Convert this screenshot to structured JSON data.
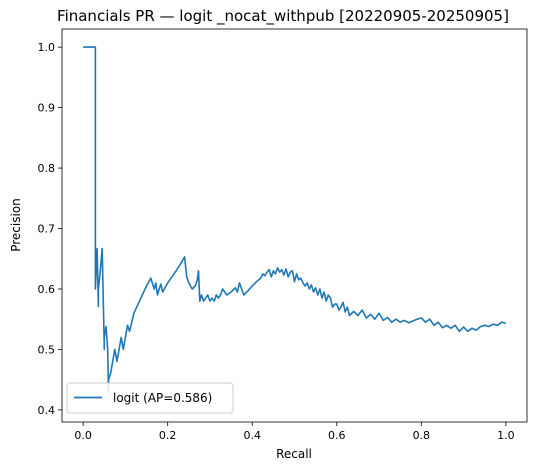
{
  "chart_data": {
    "type": "line",
    "title": "Financials PR — logit _nocat_withpub [20220905-20250905]",
    "xlabel": "Recall",
    "ylabel": "Precision",
    "xlim": [
      -0.05,
      1.05
    ],
    "ylim": [
      0.38,
      1.03
    ],
    "xticks": [
      0.0,
      0.2,
      0.4,
      0.6,
      0.8,
      1.0
    ],
    "xtick_labels": [
      "0.0",
      "0.2",
      "0.4",
      "0.6",
      "0.8",
      "1.0"
    ],
    "yticks": [
      0.4,
      0.5,
      0.6,
      0.7,
      0.8,
      0.9,
      1.0
    ],
    "ytick_labels": [
      "0.4",
      "0.5",
      "0.6",
      "0.7",
      "0.8",
      "0.9",
      "1.0"
    ],
    "grid": false,
    "legend_position": "lower-left",
    "colors": {
      "series": "#1f77b4"
    },
    "series": [
      {
        "name": "logit (AP=0.586)",
        "x": [
          0.0,
          0.029,
          0.029,
          0.033,
          0.036,
          0.036,
          0.04,
          0.045,
          0.05,
          0.05,
          0.054,
          0.058,
          0.06,
          0.06,
          0.065,
          0.07,
          0.075,
          0.08,
          0.085,
          0.09,
          0.095,
          0.1,
          0.105,
          0.11,
          0.115,
          0.12,
          0.13,
          0.14,
          0.15,
          0.16,
          0.168,
          0.172,
          0.176,
          0.18,
          0.184,
          0.188,
          0.192,
          0.196,
          0.2,
          0.21,
          0.22,
          0.23,
          0.24,
          0.245,
          0.25,
          0.258,
          0.265,
          0.27,
          0.273,
          0.276,
          0.28,
          0.285,
          0.29,
          0.295,
          0.3,
          0.305,
          0.31,
          0.315,
          0.32,
          0.325,
          0.33,
          0.34,
          0.35,
          0.36,
          0.365,
          0.37,
          0.38,
          0.39,
          0.4,
          0.41,
          0.42,
          0.425,
          0.43,
          0.435,
          0.44,
          0.445,
          0.45,
          0.455,
          0.46,
          0.465,
          0.47,
          0.475,
          0.48,
          0.485,
          0.49,
          0.495,
          0.5,
          0.505,
          0.51,
          0.515,
          0.52,
          0.525,
          0.53,
          0.535,
          0.54,
          0.545,
          0.55,
          0.555,
          0.56,
          0.565,
          0.57,
          0.575,
          0.58,
          0.585,
          0.59,
          0.595,
          0.6,
          0.605,
          0.61,
          0.615,
          0.62,
          0.625,
          0.63,
          0.64,
          0.65,
          0.66,
          0.67,
          0.68,
          0.69,
          0.7,
          0.71,
          0.72,
          0.73,
          0.74,
          0.75,
          0.76,
          0.77,
          0.78,
          0.79,
          0.8,
          0.81,
          0.82,
          0.83,
          0.84,
          0.85,
          0.86,
          0.87,
          0.88,
          0.89,
          0.9,
          0.91,
          0.92,
          0.93,
          0.94,
          0.95,
          0.96,
          0.97,
          0.98,
          0.99,
          1.0
        ],
        "y": [
          1.0,
          1.0,
          0.6,
          0.667,
          0.571,
          0.6,
          0.625,
          0.667,
          0.5,
          0.52,
          0.538,
          0.5,
          0.429,
          0.45,
          0.46,
          0.48,
          0.5,
          0.48,
          0.5,
          0.52,
          0.5,
          0.52,
          0.54,
          0.53,
          0.545,
          0.56,
          0.575,
          0.59,
          0.605,
          0.618,
          0.6,
          0.61,
          0.59,
          0.6,
          0.608,
          0.595,
          0.6,
          0.605,
          0.61,
          0.62,
          0.63,
          0.641,
          0.653,
          0.62,
          0.61,
          0.6,
          0.605,
          0.615,
          0.63,
          0.58,
          0.59,
          0.58,
          0.585,
          0.59,
          0.58,
          0.585,
          0.58,
          0.59,
          0.585,
          0.59,
          0.6,
          0.59,
          0.595,
          0.602,
          0.595,
          0.61,
          0.59,
          0.597,
          0.605,
          0.612,
          0.618,
          0.625,
          0.622,
          0.628,
          0.632,
          0.62,
          0.63,
          0.625,
          0.635,
          0.628,
          0.632,
          0.623,
          0.633,
          0.62,
          0.628,
          0.63,
          0.612,
          0.625,
          0.615,
          0.618,
          0.61,
          0.605,
          0.61,
          0.6,
          0.607,
          0.595,
          0.602,
          0.59,
          0.6,
          0.585,
          0.595,
          0.58,
          0.59,
          0.585,
          0.57,
          0.575,
          0.575,
          0.565,
          0.57,
          0.578,
          0.562,
          0.57,
          0.556,
          0.563,
          0.556,
          0.565,
          0.552,
          0.558,
          0.55,
          0.56,
          0.548,
          0.553,
          0.545,
          0.55,
          0.545,
          0.548,
          0.544,
          0.547,
          0.55,
          0.552,
          0.545,
          0.55,
          0.54,
          0.545,
          0.536,
          0.54,
          0.535,
          0.54,
          0.53,
          0.537,
          0.53,
          0.535,
          0.532,
          0.538,
          0.54,
          0.538,
          0.542,
          0.54,
          0.545,
          0.543
        ]
      }
    ]
  }
}
